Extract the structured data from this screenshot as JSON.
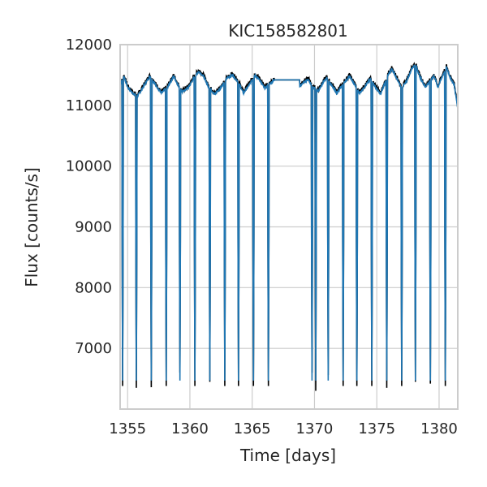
{
  "chart_data": {
    "type": "line",
    "title": "KIC158582801",
    "xlabel": "Time [days]",
    "ylabel": "Flux [counts/s]",
    "xlim": [
      1354.4,
      1381.5
    ],
    "ylim": [
      6000,
      12000
    ],
    "xticks": [
      1355,
      1360,
      1365,
      1370,
      1375,
      1380
    ],
    "yticks": [
      7000,
      8000,
      9000,
      10000,
      11000,
      12000
    ],
    "grid": true,
    "colors": {
      "raw": "#000000",
      "model": "#1f77b4",
      "axes": "#cccccc",
      "grid": "#cccccc"
    },
    "gap": [
      1366.8,
      1368.8
    ],
    "dips": [
      {
        "t": 1354.6,
        "raw_min": 6380,
        "model_min": 6470
      },
      {
        "t": 1355.7,
        "raw_min": 6350,
        "model_min": 6470
      },
      {
        "t": 1356.9,
        "raw_min": 6360,
        "model_min": 6470
      },
      {
        "t": 1358.1,
        "raw_min": 6380,
        "model_min": 6470
      },
      {
        "t": 1359.2,
        "raw_min": 6600,
        "model_min": 6470
      },
      {
        "t": 1360.4,
        "raw_min": 6380,
        "model_min": 6470
      },
      {
        "t": 1361.6,
        "raw_min": 6450,
        "model_min": 6470
      },
      {
        "t": 1362.8,
        "raw_min": 6380,
        "model_min": 6470
      },
      {
        "t": 1363.9,
        "raw_min": 6380,
        "model_min": 6470
      },
      {
        "t": 1365.1,
        "raw_min": 6380,
        "model_min": 6470
      },
      {
        "t": 1366.3,
        "raw_min": 6380,
        "model_min": 6470
      },
      {
        "t": 1369.8,
        "raw_min": 6600,
        "model_min": 6470
      },
      {
        "t": 1370.1,
        "raw_min": 6300,
        "model_min": 6470
      },
      {
        "t": 1371.1,
        "raw_min": 6560,
        "model_min": 6470
      },
      {
        "t": 1372.3,
        "raw_min": 6380,
        "model_min": 6470
      },
      {
        "t": 1373.4,
        "raw_min": 6380,
        "model_min": 6470
      },
      {
        "t": 1374.6,
        "raw_min": 6380,
        "model_min": 6470
      },
      {
        "t": 1375.8,
        "raw_min": 6350,
        "model_min": 6470
      },
      {
        "t": 1377.0,
        "raw_min": 6380,
        "model_min": 6470
      },
      {
        "t": 1378.1,
        "raw_min": 6450,
        "model_min": 6470
      },
      {
        "t": 1379.3,
        "raw_min": 6420,
        "model_min": 6470
      },
      {
        "t": 1380.5,
        "raw_min": 6380,
        "model_min": 6470
      }
    ],
    "baseline": [
      [
        1354.4,
        11350
      ],
      [
        1354.7,
        11480
      ],
      [
        1355.0,
        11300
      ],
      [
        1355.4,
        11200
      ],
      [
        1355.8,
        11150
      ],
      [
        1356.3,
        11320
      ],
      [
        1356.8,
        11480
      ],
      [
        1357.2,
        11350
      ],
      [
        1357.7,
        11200
      ],
      [
        1358.2,
        11300
      ],
      [
        1358.7,
        11480
      ],
      [
        1359.0,
        11350
      ],
      [
        1359.4,
        11220
      ],
      [
        1359.9,
        11300
      ],
      [
        1360.3,
        11450
      ],
      [
        1360.7,
        11560
      ],
      [
        1361.1,
        11480
      ],
      [
        1361.5,
        11300
      ],
      [
        1362.0,
        11180
      ],
      [
        1362.5,
        11300
      ],
      [
        1363.0,
        11450
      ],
      [
        1363.4,
        11500
      ],
      [
        1363.9,
        11380
      ],
      [
        1364.3,
        11200
      ],
      [
        1364.8,
        11350
      ],
      [
        1365.2,
        11500
      ],
      [
        1365.6,
        11420
      ],
      [
        1366.0,
        11280
      ],
      [
        1366.4,
        11350
      ],
      [
        1366.8,
        11420
      ],
      [
        1367.5,
        11300
      ],
      [
        1368.8,
        11300
      ],
      [
        1369.1,
        11380
      ],
      [
        1369.5,
        11420
      ],
      [
        1369.9,
        11300
      ],
      [
        1370.3,
        11230
      ],
      [
        1370.7,
        11380
      ],
      [
        1371.0,
        11450
      ],
      [
        1371.4,
        11320
      ],
      [
        1371.8,
        11200
      ],
      [
        1372.3,
        11350
      ],
      [
        1372.8,
        11480
      ],
      [
        1373.2,
        11350
      ],
      [
        1373.6,
        11200
      ],
      [
        1374.0,
        11300
      ],
      [
        1374.5,
        11430
      ],
      [
        1374.9,
        11300
      ],
      [
        1375.3,
        11180
      ],
      [
        1375.8,
        11450
      ],
      [
        1376.2,
        11600
      ],
      [
        1376.6,
        11450
      ],
      [
        1377.0,
        11280
      ],
      [
        1377.4,
        11400
      ],
      [
        1377.8,
        11600
      ],
      [
        1378.1,
        11680
      ],
      [
        1378.5,
        11450
      ],
      [
        1378.9,
        11300
      ],
      [
        1379.3,
        11420
      ],
      [
        1379.6,
        11480
      ],
      [
        1379.9,
        11300
      ],
      [
        1380.3,
        11500
      ],
      [
        1380.6,
        11630
      ],
      [
        1380.9,
        11450
      ],
      [
        1381.2,
        11350
      ],
      [
        1381.5,
        10950
      ]
    ]
  }
}
